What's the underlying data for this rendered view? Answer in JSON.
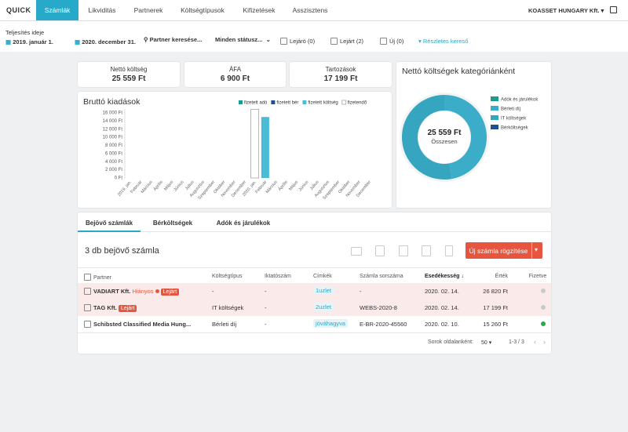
{
  "nav": {
    "logo": "QUICK",
    "tabs": [
      "Számlák",
      "Likviditás",
      "Partnerek",
      "Költségtípusok",
      "Kifizetések",
      "Asszisztens"
    ],
    "active_tab": 0,
    "company": "KOASSET HUNGARY Kft."
  },
  "filters": {
    "date_label": "Teljesítés ideje",
    "date_from": "2019. január 1.",
    "date_to": "2020. december 31.",
    "partner_search": "Partner keresése...",
    "status": "Minden státusz...",
    "checkboxes": [
      "Lejáró (0)",
      "Lejárt (2)",
      "Új (0)"
    ],
    "advanced": "Részletes kereső"
  },
  "stats": [
    {
      "label": "Nettó költség",
      "value": "25 559 Ft"
    },
    {
      "label": "ÁFA",
      "value": "6 900 Ft"
    },
    {
      "label": "Tartozások",
      "value": "17 199 Ft"
    }
  ],
  "bar_chart": {
    "type": "bar",
    "stacked": true,
    "title": "Bruttó kiadások",
    "categories": [
      "2019. jan.",
      "Február",
      "Március",
      "Április",
      "Május",
      "Június",
      "Július",
      "Augusztus",
      "Szeptember",
      "Október",
      "November",
      "December",
      "2020. jan.",
      "Február",
      "Március",
      "Április",
      "Május",
      "Június",
      "Július",
      "Augusztus",
      "Szeptember",
      "Október",
      "November",
      "December"
    ],
    "series": [
      {
        "name": "fizetett adó",
        "color": "#1d9b8c",
        "values": [
          0,
          0,
          0,
          0,
          0,
          0,
          0,
          0,
          0,
          0,
          0,
          0,
          0,
          0,
          0,
          0,
          0,
          0,
          0,
          0,
          0,
          0,
          0,
          0
        ]
      },
      {
        "name": "fizetett bér",
        "color": "#1f4f8e",
        "values": [
          0,
          0,
          0,
          0,
          0,
          0,
          0,
          0,
          0,
          0,
          0,
          0,
          0,
          0,
          0,
          0,
          0,
          0,
          0,
          0,
          0,
          0,
          0,
          0
        ]
      },
      {
        "name": "fizetett költség",
        "color": "#4bbcd6",
        "values": [
          0,
          0,
          0,
          0,
          0,
          0,
          0,
          0,
          0,
          0,
          0,
          0,
          0,
          15000,
          0,
          0,
          0,
          0,
          0,
          0,
          0,
          0,
          0,
          0
        ]
      },
      {
        "name": "fizetendő",
        "color": "#ffffff",
        "values": [
          0,
          0,
          0,
          0,
          0,
          0,
          0,
          0,
          0,
          0,
          0,
          0,
          16900,
          0,
          0,
          0,
          0,
          0,
          0,
          0,
          0,
          0,
          0,
          0
        ]
      }
    ],
    "ylim": [
      0,
      17000
    ],
    "yticks": [
      {
        "value": 0,
        "label": "0 Ft"
      },
      {
        "value": 2000,
        "label": "2 000 Ft"
      },
      {
        "value": 4000,
        "label": "4 000 Ft"
      },
      {
        "value": 6000,
        "label": "6 000 Ft"
      },
      {
        "value": 8000,
        "label": "8 000 Ft"
      },
      {
        "value": 10000,
        "label": "10 000 Ft"
      },
      {
        "value": 12000,
        "label": "12 000 Ft"
      },
      {
        "value": 14000,
        "label": "14 000 Ft"
      },
      {
        "value": 16000,
        "label": "16 000 Ft"
      }
    ]
  },
  "donut_chart": {
    "type": "donut",
    "title": "Nettó költségek kategóriánként",
    "center_value": "25 559 Ft",
    "center_label": "Összesen",
    "categories": [
      "Adók és járulékok",
      "Bérleti díj",
      "IT költségek",
      "Bérköltségek"
    ],
    "values": [
      0,
      12029,
      13530,
      0
    ],
    "colors": [
      "#1d9b8c",
      "#3badc8",
      "#36a5c0",
      "#1f4f8e"
    ]
  },
  "invoices": {
    "tabs": [
      "Bejövő számlák",
      "Bérköltségek",
      "Adók és járulékok"
    ],
    "active_tab": 0,
    "count_title": "3 db bejövő számla",
    "new_button": "Új számla rögzítése",
    "columns": [
      "Partner",
      "Költségtípus",
      "Iktatószám",
      "Címkék",
      "Számla sorszáma",
      "Esedékesség",
      "Érték",
      "Fizetve"
    ],
    "rows": [
      {
        "partner": "VADIART Kft.",
        "flag": "Hiányos",
        "status": "Lejárt",
        "type": "-",
        "filing": "-",
        "tag": "1uzlet",
        "number": "-",
        "due": "2020. 02. 14.",
        "amount": "26 820 Ft",
        "paid": false
      },
      {
        "partner": "TAG Kft.",
        "status": "Lejárt",
        "type": "IT költségek",
        "filing": "-",
        "tag": "2uzlet",
        "number": "WEBS-2020-8",
        "due": "2020. 02. 14.",
        "amount": "17 199 Ft",
        "paid": false
      },
      {
        "partner": "Schibsted Classified Media Hung...",
        "type": "Bérleti díj",
        "filing": "-",
        "tag": "jóváhagyva",
        "number": "E-BR-2020-45560",
        "due": "2020. 02. 10.",
        "amount": "15 260 Ft",
        "paid": true
      }
    ],
    "footer": {
      "rows_per_page_label": "Sorok oldalanként:",
      "rows_per_page": "50",
      "range": "1-3 / 3"
    }
  }
}
